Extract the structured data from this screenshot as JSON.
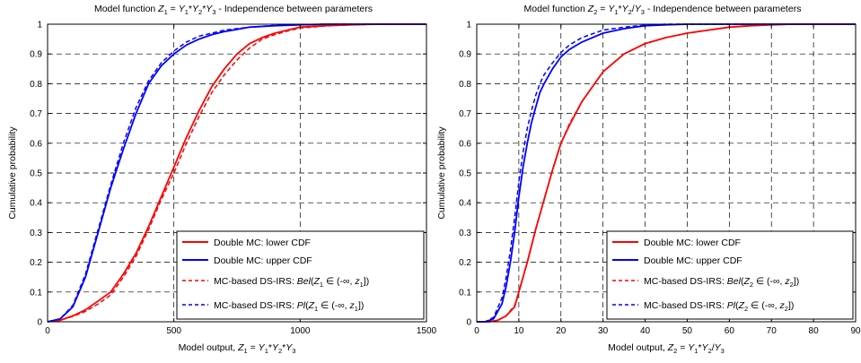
{
  "colors": {
    "red": "#ff0000",
    "blue": "#0000ff",
    "grid": "#000000"
  },
  "chart_data": [
    {
      "type": "line",
      "title": "Model function Z1 = Y1*Y2*Y3 - Independence between parameters",
      "title_parts": {
        "pre": "Model function ",
        "z": "Z",
        "zs": "1",
        "eq": " = ",
        "y1": "Y",
        "s1": "1",
        "op1": "*",
        "y2": "Y",
        "s2": "2",
        "op2": "*",
        "y3": "Y",
        "s3": "3",
        "post": " - Independence between parameters"
      },
      "xlabel": "Model output, Z1 = Y1*Y2*Y3",
      "xlabel_parts": {
        "pre": "Model output, ",
        "z": "Z",
        "zs": "1",
        "eq": " = ",
        "y1": "Y",
        "s1": "1",
        "op1": "*",
        "y2": "Y",
        "s2": "2",
        "op2": "*",
        "y3": "Y",
        "s3": "3"
      },
      "ylabel": "Cumulative probability",
      "xlim": [
        0,
        1500
      ],
      "ylim": [
        0,
        1
      ],
      "xticks": [
        "0",
        "500",
        "1000",
        "1500"
      ],
      "yticks": [
        "0",
        "0.1",
        "0.2",
        "0.3",
        "0.4",
        "0.5",
        "0.6",
        "0.7",
        "0.8",
        "0.9",
        "1"
      ],
      "grid": true,
      "legend_position": "bottom-right",
      "legend": [
        {
          "label": "Double MC: lower CDF",
          "color": "#ff0000",
          "dash": false
        },
        {
          "label": "Double MC: upper CDF",
          "color": "#0000ff",
          "dash": false
        },
        {
          "label": "MC-based DS-IRS: Bel(Z1 ∈ (-∞, z1])",
          "color": "#ff0000",
          "dash": true,
          "pre": "MC-based DS-IRS: ",
          "fn": "Bel",
          "z": "Z",
          "zs": "1",
          "mid": " ∈ (-∞, ",
          "zl": "z",
          "zls": "1",
          "end": "])"
        },
        {
          "label": "MC-based DS-IRS: Pl(Z1 ∈ (-∞, z1])",
          "color": "#0000ff",
          "dash": true,
          "pre": "MC-based DS-IRS: ",
          "fn": "Pl",
          "z": "Z",
          "zs": "1",
          "mid": " ∈ (-∞, ",
          "zl": "z",
          "zls": "1",
          "end": "])"
        }
      ],
      "series": [
        {
          "name": "Double MC: lower CDF",
          "color": "#ff0000",
          "dash": false,
          "x": [
            0,
            50,
            100,
            150,
            200,
            250,
            300,
            350,
            400,
            450,
            500,
            550,
            600,
            650,
            700,
            750,
            800,
            850,
            900,
            950,
            1000,
            1100,
            1200,
            1300,
            1400,
            1500
          ],
          "y": [
            0,
            0.005,
            0.02,
            0.04,
            0.07,
            0.1,
            0.16,
            0.23,
            0.32,
            0.42,
            0.52,
            0.62,
            0.71,
            0.79,
            0.85,
            0.9,
            0.935,
            0.955,
            0.97,
            0.98,
            0.99,
            0.995,
            0.998,
            1,
            1,
            1
          ]
        },
        {
          "name": "Double MC: upper CDF",
          "color": "#0000ff",
          "dash": false,
          "x": [
            0,
            50,
            100,
            150,
            200,
            250,
            300,
            350,
            400,
            450,
            500,
            550,
            600,
            650,
            700,
            800,
            900,
            1000,
            1100,
            1200,
            1300,
            1400,
            1500
          ],
          "y": [
            0,
            0.01,
            0.05,
            0.15,
            0.3,
            0.45,
            0.58,
            0.7,
            0.8,
            0.86,
            0.9,
            0.93,
            0.95,
            0.965,
            0.975,
            0.99,
            0.995,
            0.998,
            1,
            1,
            1,
            1,
            1
          ]
        },
        {
          "name": "MC-based DS-IRS: Bel(Z1 ∈ (-∞, z1])",
          "color": "#ff0000",
          "dash": true,
          "x": [
            0,
            50,
            100,
            150,
            200,
            250,
            300,
            350,
            400,
            450,
            500,
            550,
            600,
            650,
            700,
            750,
            800,
            850,
            900,
            950,
            1000,
            1100,
            1200,
            1300,
            1400,
            1500
          ],
          "y": [
            0,
            0.005,
            0.018,
            0.035,
            0.06,
            0.09,
            0.15,
            0.22,
            0.31,
            0.41,
            0.5,
            0.6,
            0.69,
            0.77,
            0.83,
            0.88,
            0.92,
            0.95,
            0.965,
            0.977,
            0.987,
            0.994,
            0.998,
            1,
            1,
            1
          ]
        },
        {
          "name": "MC-based DS-IRS: Pl(Z1 ∈ (-∞, z1])",
          "color": "#0000ff",
          "dash": true,
          "x": [
            0,
            50,
            100,
            150,
            200,
            250,
            300,
            350,
            400,
            450,
            500,
            550,
            600,
            650,
            700,
            800,
            900,
            1000,
            1100,
            1200,
            1300,
            1400,
            1500
          ],
          "y": [
            0,
            0.01,
            0.055,
            0.16,
            0.31,
            0.46,
            0.6,
            0.72,
            0.81,
            0.87,
            0.91,
            0.94,
            0.96,
            0.97,
            0.98,
            0.99,
            0.996,
            0.998,
            1,
            1,
            1,
            1,
            1
          ]
        }
      ]
    },
    {
      "type": "line",
      "title": "Model function Z2 = Y1*Y2/Y3 - Independence between parameters",
      "title_parts": {
        "pre": "Model function ",
        "z": "Z",
        "zs": "2",
        "eq": " = ",
        "y1": "Y",
        "s1": "1",
        "op1": "*",
        "y2": "Y",
        "s2": "2",
        "op2": "/",
        "y3": "Y",
        "s3": "3",
        "post": " - Independence between parameters"
      },
      "xlabel": "Model output, Z2 = Y1*Y2/Y3",
      "xlabel_parts": {
        "pre": "Model output, ",
        "z": "Z",
        "zs": "2",
        "eq": " = ",
        "y1": "Y",
        "s1": "1",
        "op1": "*",
        "y2": "Y",
        "s2": "2",
        "op2": "/",
        "y3": "Y",
        "s3": "3"
      },
      "ylabel": "Cumulative probability",
      "xlim": [
        0,
        90
      ],
      "ylim": [
        0,
        1
      ],
      "xticks": [
        "0",
        "10",
        "20",
        "30",
        "40",
        "50",
        "60",
        "70",
        "80",
        "90"
      ],
      "yticks": [
        "0",
        "0.1",
        "0.2",
        "0.3",
        "0.4",
        "0.5",
        "0.6",
        "0.7",
        "0.8",
        "0.9",
        "1"
      ],
      "grid": true,
      "legend_position": "bottom-right",
      "legend": [
        {
          "label": "Double MC: lower CDF",
          "color": "#ff0000",
          "dash": false
        },
        {
          "label": "Double MC: upper CDF",
          "color": "#0000ff",
          "dash": false
        },
        {
          "label": "MC-based DS-IRS: Bel(Z2 ∈ (-∞, z2])",
          "color": "#ff0000",
          "dash": true,
          "pre": "MC-based DS-IRS: ",
          "fn": "Bel",
          "z": "Z",
          "zs": "2",
          "mid": " ∈ (-∞, ",
          "zl": "z",
          "zls": "2",
          "end": "])"
        },
        {
          "label": "MC-based DS-IRS: Pl(Z2 ∈ (-∞, z2])",
          "color": "#0000ff",
          "dash": true,
          "pre": "MC-based DS-IRS: ",
          "fn": "Pl",
          "z": "Z",
          "zs": "2",
          "mid": " ∈ (-∞, ",
          "zl": "z",
          "zls": "2",
          "end": "])"
        }
      ],
      "series": [
        {
          "name": "Double MC: lower CDF",
          "color": "#ff0000",
          "dash": false,
          "x": [
            0,
            3,
            5,
            7,
            9,
            10,
            12,
            14,
            16,
            18,
            20,
            22,
            25,
            28,
            30,
            35,
            40,
            45,
            50,
            55,
            60,
            65,
            70,
            75,
            80,
            90
          ],
          "y": [
            0,
            0,
            0.005,
            0.02,
            0.05,
            0.1,
            0.2,
            0.31,
            0.41,
            0.51,
            0.6,
            0.66,
            0.74,
            0.8,
            0.84,
            0.9,
            0.935,
            0.955,
            0.97,
            0.98,
            0.99,
            0.995,
            0.998,
            1,
            1,
            1
          ]
        },
        {
          "name": "Double MC: upper CDF",
          "color": "#0000ff",
          "dash": false,
          "x": [
            0,
            2,
            4,
            6,
            7,
            8,
            9,
            10,
            11,
            12,
            13,
            14,
            15,
            16,
            18,
            20,
            22,
            25,
            30,
            35,
            40,
            45,
            50,
            55,
            60,
            90
          ],
          "y": [
            0,
            0,
            0.01,
            0.06,
            0.12,
            0.2,
            0.3,
            0.42,
            0.52,
            0.6,
            0.67,
            0.72,
            0.77,
            0.8,
            0.85,
            0.89,
            0.915,
            0.94,
            0.97,
            0.985,
            0.995,
            0.998,
            1,
            1,
            1,
            1
          ]
        },
        {
          "name": "MC-based DS-IRS: Bel(Z2 ∈ (-∞, z2])",
          "color": "#ff0000",
          "dash": true,
          "x": [
            0,
            3,
            5,
            7,
            9,
            10,
            12,
            14,
            16,
            18,
            20,
            22,
            25,
            28,
            30,
            35,
            40,
            45,
            50,
            55,
            60,
            65,
            70,
            75,
            80,
            90
          ],
          "y": [
            0,
            0,
            0.005,
            0.02,
            0.055,
            0.1,
            0.2,
            0.31,
            0.41,
            0.51,
            0.6,
            0.665,
            0.74,
            0.8,
            0.84,
            0.9,
            0.935,
            0.955,
            0.97,
            0.98,
            0.99,
            0.995,
            0.998,
            1,
            1,
            1
          ]
        },
        {
          "name": "MC-based DS-IRS: Pl(Z2 ∈ (-∞, z2])",
          "color": "#0000ff",
          "dash": true,
          "x": [
            0,
            2,
            4,
            6,
            7,
            8,
            9,
            10,
            11,
            12,
            13,
            14,
            15,
            16,
            18,
            20,
            22,
            25,
            30,
            35,
            40,
            45,
            50,
            55,
            60,
            90
          ],
          "y": [
            0,
            0,
            0.015,
            0.08,
            0.15,
            0.24,
            0.35,
            0.47,
            0.57,
            0.65,
            0.71,
            0.76,
            0.8,
            0.83,
            0.87,
            0.905,
            0.93,
            0.955,
            0.98,
            0.99,
            0.997,
            1,
            1,
            1,
            1,
            1
          ]
        }
      ]
    }
  ]
}
